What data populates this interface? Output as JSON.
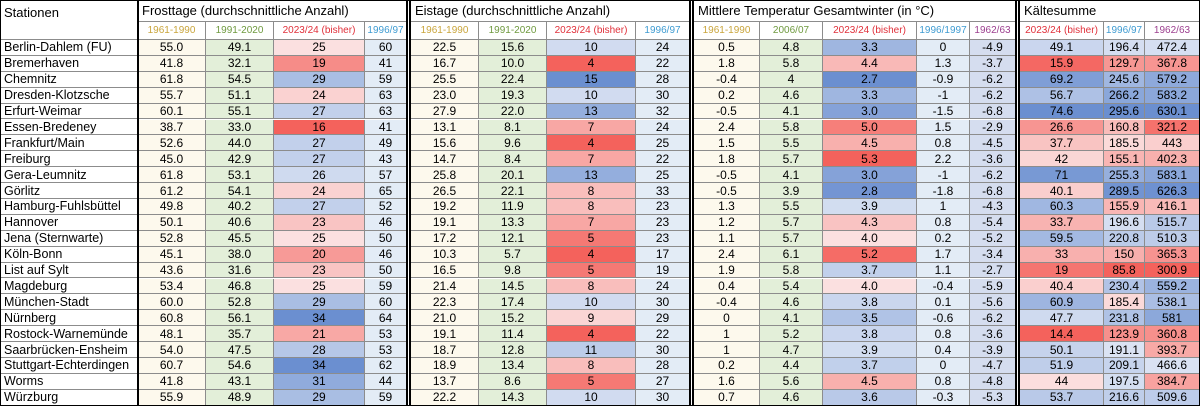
{
  "table": {
    "header_station": "Stationen",
    "groups": [
      {
        "title": "Frosttage (durchschnittliche Anzahl)",
        "cols": [
          "1961-1990",
          "1991-2020",
          "2023/24 (bisher)",
          "1996/97"
        ]
      },
      {
        "title": "Eistage (durchschnittliche Anzahl)",
        "cols": [
          "1961-1990",
          "1991-2020",
          "2023/24 (bisher)",
          "1996/97"
        ]
      },
      {
        "title": "Mittlere Temperatur Gesamtwinter (in °C)",
        "cols": [
          "1961-1990",
          "2006/07",
          "2023/24 (bisher)",
          "1996/1997",
          "1962/63"
        ]
      },
      {
        "title": "Kältesumme",
        "cols": [
          "2023/24 (bisher)",
          "1996/97",
          "1962/63"
        ]
      }
    ],
    "colors": {
      "col_1961": "#c9a53c",
      "col_green": "#6f9a3f",
      "col_current": "#e0303a",
      "col_9697": "#3e9bd1",
      "col_6263": "#9c3f8f",
      "bg_green": "#e3efd9",
      "bg_current_col": "#f3cbcc",
      "bg_9697": "#e3ecf6",
      "bg_6263": "#d5ddef",
      "bg_1961": "#fdf9ed",
      "border_group": "#000000"
    },
    "rows": [
      {
        "station": "Berlin-Dahlem (FU)",
        "frost": [
          "55.0",
          "49.1",
          "25",
          "60"
        ],
        "eis": [
          "22.5",
          "15.6",
          "10",
          "24"
        ],
        "temp": [
          "0.5",
          "4.8",
          "3.3",
          "0",
          "-4.9"
        ],
        "kalt": [
          "49.1",
          "196.4",
          "472.4"
        ]
      },
      {
        "station": "Bremerhaven",
        "frost": [
          "41.8",
          "32.1",
          "19",
          "41"
        ],
        "eis": [
          "16.7",
          "10.0",
          "4",
          "22"
        ],
        "temp": [
          "1.8",
          "5.8",
          "4.4",
          "1.3",
          "-3.7"
        ],
        "kalt": [
          "15.9",
          "129.7",
          "367.8"
        ]
      },
      {
        "station": "Chemnitz",
        "frost": [
          "61.8",
          "54.5",
          "29",
          "59"
        ],
        "eis": [
          "25.5",
          "22.4",
          "15",
          "28"
        ],
        "temp": [
          "-0.4",
          "4",
          "2.7",
          "-0.9",
          "-6.2"
        ],
        "kalt": [
          "69.2",
          "245.6",
          "579.2"
        ]
      },
      {
        "station": "Dresden-Klotzsche",
        "frost": [
          "55.7",
          "51.1",
          "24",
          "63"
        ],
        "eis": [
          "23.0",
          "19.3",
          "10",
          "30"
        ],
        "temp": [
          "0.2",
          "4.6",
          "3.3",
          "-1",
          "-6.2"
        ],
        "kalt": [
          "56.7",
          "266.2",
          "583.2"
        ]
      },
      {
        "station": "Erfurt-Weimar",
        "frost": [
          "60.1",
          "55.1",
          "27",
          "63"
        ],
        "eis": [
          "27.9",
          "22.0",
          "13",
          "32"
        ],
        "temp": [
          "-0.5",
          "4.1",
          "3.0",
          "-1.5",
          "-6.8"
        ],
        "kalt": [
          "74.6",
          "295.6",
          "630.1"
        ]
      },
      {
        "station": "Essen-Bredeney",
        "frost": [
          "38.7",
          "33.0",
          "16",
          "41"
        ],
        "eis": [
          "13.1",
          "8.1",
          "7",
          "24"
        ],
        "temp": [
          "2.4",
          "5.8",
          "5.0",
          "1.5",
          "-2.9"
        ],
        "kalt": [
          "26.6",
          "160.8",
          "321.2"
        ]
      },
      {
        "station": "Frankfurt/Main",
        "frost": [
          "52.6",
          "44.0",
          "27",
          "49"
        ],
        "eis": [
          "15.6",
          "9.6",
          "4",
          "25"
        ],
        "temp": [
          "1.5",
          "5.5",
          "4.5",
          "0.8",
          "-4.5"
        ],
        "kalt": [
          "37.7",
          "185.5",
          "443"
        ]
      },
      {
        "station": "Freiburg",
        "frost": [
          "45.0",
          "42.9",
          "27",
          "43"
        ],
        "eis": [
          "14.7",
          "8.4",
          "7",
          "22"
        ],
        "temp": [
          "1.8",
          "5.7",
          "5.3",
          "2.2",
          "-3.6"
        ],
        "kalt": [
          "42",
          "155.1",
          "402.3"
        ]
      },
      {
        "station": "Gera-Leumnitz",
        "frost": [
          "61.8",
          "53.1",
          "26",
          "57"
        ],
        "eis": [
          "25.8",
          "20.1",
          "13",
          "25"
        ],
        "temp": [
          "-0.5",
          "4.1",
          "3.0",
          "-1",
          "-6.2"
        ],
        "kalt": [
          "71",
          "255.3",
          "583.1"
        ]
      },
      {
        "station": "Görlitz",
        "frost": [
          "61.2",
          "54.1",
          "24",
          "65"
        ],
        "eis": [
          "26.5",
          "22.1",
          "8",
          "33"
        ],
        "temp": [
          "-0.5",
          "3.9",
          "2.8",
          "-1.8",
          "-6.8"
        ],
        "kalt": [
          "40.1",
          "289.5",
          "626.3"
        ]
      },
      {
        "station": "Hamburg-Fuhlsbüttel",
        "frost": [
          "49.8",
          "40.2",
          "27",
          "52"
        ],
        "eis": [
          "19.2",
          "11.9",
          "8",
          "23"
        ],
        "temp": [
          "1.3",
          "5.5",
          "3.9",
          "1",
          "-4.3"
        ],
        "kalt": [
          "60.3",
          "155.9",
          "416.1"
        ]
      },
      {
        "station": "Hannover",
        "frost": [
          "50.1",
          "40.6",
          "23",
          "46"
        ],
        "eis": [
          "19.1",
          "13.3",
          "7",
          "23"
        ],
        "temp": [
          "1.2",
          "5.7",
          "4.3",
          "0.8",
          "-5.4"
        ],
        "kalt": [
          "33.7",
          "196.6",
          "515.7"
        ]
      },
      {
        "station": "Jena (Sternwarte)",
        "frost": [
          "52.8",
          "45.5",
          "25",
          "50"
        ],
        "eis": [
          "17.2",
          "12.1",
          "5",
          "23"
        ],
        "temp": [
          "1.1",
          "5.7",
          "4.0",
          "0.2",
          "-5.2"
        ],
        "kalt": [
          "59.5",
          "220.8",
          "510.3"
        ]
      },
      {
        "station": "Köln-Bonn",
        "frost": [
          "45.1",
          "38.0",
          "20",
          "46"
        ],
        "eis": [
          "10.3",
          "5.7",
          "4",
          "17"
        ],
        "temp": [
          "2.4",
          "6.1",
          "5.2",
          "1.7",
          "-3.4"
        ],
        "kalt": [
          "33",
          "150",
          "365.3"
        ]
      },
      {
        "station": "List auf Sylt",
        "frost": [
          "43.6",
          "31.6",
          "23",
          "50"
        ],
        "eis": [
          "16.5",
          "9.8",
          "5",
          "19"
        ],
        "temp": [
          "1.9",
          "5.8",
          "3.7",
          "1.1",
          "-2.7"
        ],
        "kalt": [
          "19",
          "85.8",
          "300.9"
        ]
      },
      {
        "station": "Magdeburg",
        "frost": [
          "53.4",
          "46.8",
          "25",
          "59"
        ],
        "eis": [
          "21.4",
          "14.5",
          "8",
          "24"
        ],
        "temp": [
          "0.4",
          "5.4",
          "4.0",
          "-0.4",
          "-5.9"
        ],
        "kalt": [
          "40.4",
          "230.4",
          "559.2"
        ]
      },
      {
        "station": "München-Stadt",
        "frost": [
          "60.0",
          "52.8",
          "29",
          "60"
        ],
        "eis": [
          "22.3",
          "17.4",
          "10",
          "30"
        ],
        "temp": [
          "-0.4",
          "4.6",
          "3.8",
          "0.1",
          "-5.6"
        ],
        "kalt": [
          "60.9",
          "185.4",
          "538.1"
        ]
      },
      {
        "station": "Nürnberg",
        "frost": [
          "60.8",
          "56.1",
          "34",
          "64"
        ],
        "eis": [
          "21.0",
          "15.2",
          "9",
          "29"
        ],
        "temp": [
          "0",
          "4.1",
          "3.5",
          "-0.6",
          "-6.2"
        ],
        "kalt": [
          "47.7",
          "231.8",
          "581"
        ]
      },
      {
        "station": "Rostock-Warnemünde",
        "frost": [
          "48.1",
          "35.7",
          "21",
          "53"
        ],
        "eis": [
          "19.1",
          "11.4",
          "4",
          "22"
        ],
        "temp": [
          "1",
          "5.2",
          "3.8",
          "0.8",
          "-3.6"
        ],
        "kalt": [
          "14.4",
          "123.9",
          "360.8"
        ]
      },
      {
        "station": "Saarbrücken-Ensheim",
        "frost": [
          "54.0",
          "47.5",
          "28",
          "53"
        ],
        "eis": [
          "18.7",
          "12.8",
          "11",
          "30"
        ],
        "temp": [
          "1",
          "4.7",
          "3.9",
          "0.4",
          "-3.9"
        ],
        "kalt": [
          "50.1",
          "191.1",
          "393.7"
        ]
      },
      {
        "station": "Stuttgart-Echterdingen",
        "frost": [
          "60.7",
          "54.6",
          "34",
          "62"
        ],
        "eis": [
          "18.9",
          "13.4",
          "8",
          "28"
        ],
        "temp": [
          "0.2",
          "4.4",
          "3.7",
          "0",
          "-4.7"
        ],
        "kalt": [
          "51.9",
          "209.1",
          "466.6"
        ]
      },
      {
        "station": "Worms",
        "frost": [
          "41.8",
          "43.1",
          "31",
          "44"
        ],
        "eis": [
          "13.7",
          "8.6",
          "5",
          "27"
        ],
        "temp": [
          "1.6",
          "5.6",
          "4.5",
          "0.8",
          "-4.8"
        ],
        "kalt": [
          "44",
          "197.5",
          "384.7"
        ]
      },
      {
        "station": "Würzburg",
        "frost": [
          "55.9",
          "48.9",
          "29",
          "59"
        ],
        "eis": [
          "22.2",
          "14.3",
          "10",
          "30"
        ],
        "temp": [
          "0.7",
          "4.6",
          "3.6",
          "-0.3",
          "-5.3"
        ],
        "kalt": [
          "53.7",
          "216.6",
          "509.6"
        ]
      }
    ]
  }
}
